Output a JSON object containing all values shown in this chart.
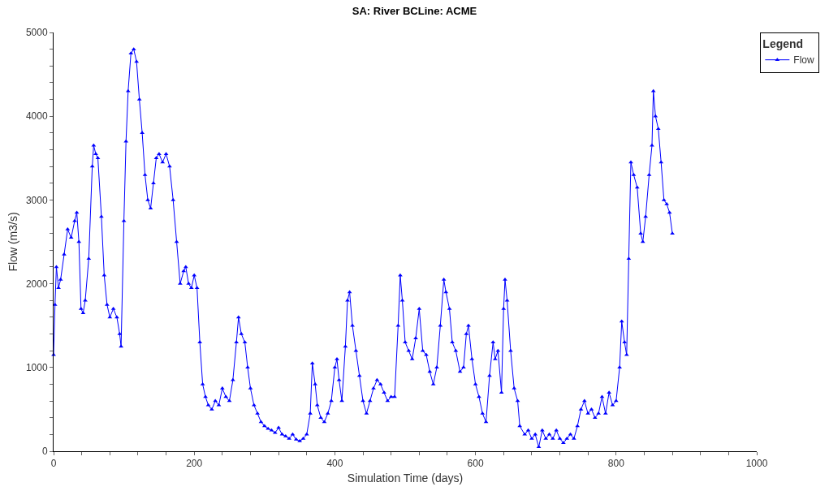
{
  "chart_data": {
    "type": "line",
    "title": "SA: River BCLine: ACME",
    "xlabel": "Simulation Time (days)",
    "ylabel": "Flow (m3/s)",
    "legend_title": "Legend",
    "legend": "top right",
    "marker": "triangle",
    "line_style": "solid",
    "xlim": [
      0,
      1000
    ],
    "ylim": [
      0,
      5000
    ],
    "xticks": [
      0,
      {
        "value": 40,
        "label": null
      },
      {
        "value": 80,
        "label": null
      },
      {
        "value": 120,
        "label": null
      },
      {
        "value": 160,
        "label": null
      },
      200,
      {
        "value": 240,
        "label": null
      },
      {
        "value": 280,
        "label": null
      },
      {
        "value": 320,
        "label": null
      },
      {
        "value": 360,
        "label": null
      },
      400,
      {
        "value": 440,
        "label": null
      },
      {
        "value": 480,
        "label": null
      },
      {
        "value": 520,
        "label": null
      },
      {
        "value": 560,
        "label": null
      },
      600,
      {
        "value": 640,
        "label": null
      },
      {
        "value": 680,
        "label": null
      },
      {
        "value": 720,
        "label": null
      },
      {
        "value": 760,
        "label": null
      },
      800,
      {
        "value": 840,
        "label": null
      },
      {
        "value": 880,
        "label": null
      },
      {
        "value": 920,
        "label": null
      },
      {
        "value": 960,
        "label": null
      },
      1000
    ],
    "yticks": [
      0,
      {
        "value": 200,
        "label": null
      },
      {
        "value": 400,
        "label": null
      },
      {
        "value": 600,
        "label": null
      },
      {
        "value": 800,
        "label": null
      },
      1000,
      {
        "value": 1200,
        "label": null
      },
      {
        "value": 1400,
        "label": null
      },
      {
        "value": 1600,
        "label": null
      },
      {
        "value": 1800,
        "label": null
      },
      2000,
      {
        "value": 2200,
        "label": null
      },
      {
        "value": 2400,
        "label": null
      },
      {
        "value": 2600,
        "label": null
      },
      {
        "value": 2800,
        "label": null
      },
      3000,
      {
        "value": 3200,
        "label": null
      },
      {
        "value": 3400,
        "label": null
      },
      {
        "value": 3600,
        "label": null
      },
      {
        "value": 3800,
        "label": null
      },
      4000,
      {
        "value": 4200,
        "label": null
      },
      {
        "value": 4400,
        "label": null
      },
      {
        "value": 4600,
        "label": null
      },
      {
        "value": 4800,
        "label": null
      },
      5000
    ],
    "x": [
      0,
      2,
      4,
      7,
      10,
      15,
      20,
      25,
      30,
      33,
      36,
      39,
      42,
      45,
      50,
      55,
      57,
      60,
      63,
      68,
      72,
      76,
      80,
      85,
      90,
      94,
      96,
      100,
      103,
      106,
      110,
      114,
      118,
      122,
      126,
      130,
      134,
      138,
      142,
      146,
      150,
      155,
      160,
      165,
      170,
      175,
      180,
      185,
      188,
      192,
      196,
      200,
      204,
      208,
      212,
      216,
      220,
      225,
      230,
      235,
      240,
      245,
      250,
      255,
      260,
      263,
      267,
      272,
      276,
      280,
      285,
      290,
      295,
      300,
      305,
      310,
      315,
      320,
      325,
      330,
      335,
      340,
      345,
      350,
      355,
      360,
      365,
      368,
      372,
      375,
      380,
      385,
      390,
      395,
      400,
      403,
      406,
      410,
      415,
      418,
      421,
      425,
      430,
      435,
      440,
      445,
      450,
      455,
      460,
      465,
      470,
      475,
      480,
      485,
      490,
      493,
      496,
      500,
      505,
      510,
      515,
      520,
      525,
      530,
      535,
      540,
      545,
      550,
      555,
      558,
      563,
      567,
      572,
      578,
      583,
      587,
      590,
      595,
      600,
      605,
      610,
      615,
      620,
      625,
      628,
      632,
      637,
      640,
      642,
      645,
      650,
      655,
      660,
      663,
      670,
      675,
      680,
      685,
      690,
      695,
      700,
      705,
      710,
      715,
      720,
      725,
      730,
      735,
      740,
      745,
      750,
      755,
      760,
      765,
      770,
      775,
      780,
      785,
      790,
      795,
      800,
      805,
      808,
      812,
      815,
      818,
      821,
      825,
      830,
      835,
      838,
      842,
      847,
      851,
      853,
      856,
      860,
      864,
      868,
      872,
      876,
      880
    ],
    "series": [
      {
        "name": "Flow",
        "color": "#0000ff",
        "values": [
          1150,
          1750,
          2200,
          1950,
          2050,
          2350,
          2650,
          2550,
          2750,
          2850,
          2500,
          1700,
          1650,
          1800,
          2300,
          3400,
          3650,
          3550,
          3500,
          2800,
          2100,
          1750,
          1600,
          1700,
          1600,
          1400,
          1250,
          2750,
          3700,
          4300,
          4750,
          4800,
          4650,
          4200,
          3800,
          3300,
          3000,
          2900,
          3200,
          3500,
          3550,
          3450,
          3550,
          3400,
          3000,
          2500,
          2000,
          2150,
          2200,
          2000,
          1950,
          2100,
          1950,
          1300,
          800,
          650,
          550,
          500,
          600,
          550,
          750,
          650,
          600,
          850,
          1300,
          1600,
          1400,
          1300,
          1000,
          750,
          550,
          450,
          350,
          300,
          270,
          250,
          220,
          280,
          200,
          180,
          150,
          200,
          140,
          120,
          150,
          200,
          450,
          1050,
          800,
          550,
          400,
          350,
          450,
          600,
          1000,
          1100,
          850,
          600,
          1250,
          1800,
          1900,
          1500,
          1200,
          900,
          600,
          450,
          600,
          750,
          850,
          800,
          700,
          600,
          650,
          650,
          1500,
          2100,
          1800,
          1300,
          1200,
          1100,
          1350,
          1700,
          1200,
          1150,
          950,
          800,
          1000,
          1500,
          2050,
          1900,
          1700,
          1300,
          1200,
          950,
          1000,
          1400,
          1500,
          1100,
          800,
          650,
          450,
          350,
          900,
          1300,
          1100,
          1200,
          700,
          1700,
          2050,
          1800,
          1200,
          750,
          600,
          300,
          200,
          250,
          150,
          200,
          50,
          250,
          150,
          200,
          150,
          250,
          150,
          100,
          150,
          200,
          150,
          300,
          500,
          600,
          450,
          500,
          400,
          450,
          650,
          450,
          700,
          550,
          600,
          1000,
          1550,
          1300,
          1150,
          2300,
          3450,
          3300,
          3150,
          2600,
          2500,
          2800,
          3300,
          3650,
          4300,
          4000,
          3850,
          3450,
          3000,
          2950,
          2850,
          2600
        ]
      }
    ]
  }
}
